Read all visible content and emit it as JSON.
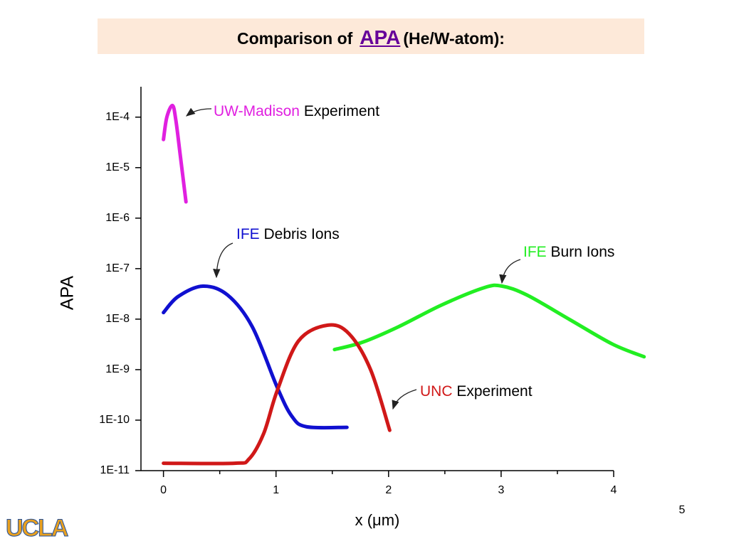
{
  "header": {
    "title_start": "Comparison  of",
    "title_link": "APA",
    "title_end": "(He/W-atom):"
  },
  "chart_data": {
    "type": "line",
    "xlabel": "x (μm)",
    "ylabel": "APA",
    "xlim": [
      -0.2,
      4
    ],
    "xticks": [
      0,
      1,
      2,
      3,
      4
    ],
    "xticks_minor": [
      0.5,
      1.5,
      2.5,
      3.5
    ],
    "ylim": [
      1e-11,
      0.0004
    ],
    "log_y": true,
    "yticks": [
      {
        "value": 1e-11,
        "label": "1E-11"
      },
      {
        "value": 1e-10,
        "label": "1E-10"
      },
      {
        "value": 1e-09,
        "label": "1E-9"
      },
      {
        "value": 1e-08,
        "label": "1E-8"
      },
      {
        "value": 1e-07,
        "label": "1E-7"
      },
      {
        "value": 1e-06,
        "label": "1E-6"
      },
      {
        "value": 1e-05,
        "label": "1E-5"
      },
      {
        "value": 0.0001,
        "label": "1E-4"
      }
    ],
    "series": [
      {
        "name": "UW-Madison",
        "label": "Experiment",
        "color": "#e020e0",
        "x": [
          0.0,
          0.03,
          0.08,
          0.11,
          0.15,
          0.2
        ],
        "values": [
          3.6e-05,
          0.0001,
          0.00017,
          8.7e-05,
          1.7e-05,
          2.1e-06
        ]
      },
      {
        "name": "IFE",
        "label": "Debris Ions",
        "color": "#1010d0",
        "x": [
          0,
          0.13,
          0.35,
          0.57,
          0.79,
          1.01,
          1.14,
          1.27,
          1.63
        ],
        "values": [
          1.35e-08,
          2.8e-08,
          4.5e-08,
          3e-08,
          7e-09,
          4.5e-10,
          1.2e-10,
          7.4e-11,
          7.2e-11
        ]
      },
      {
        "name": "IFE",
        "label": "Burn Ions",
        "color": "#22ee22",
        "x": [
          1.52,
          1.77,
          2.09,
          2.47,
          2.85,
          3.01,
          3.23,
          3.61,
          3.99,
          4.27
        ],
        "values": [
          2.5e-09,
          3.5e-09,
          7.1e-09,
          1.9e-08,
          4.2e-08,
          4.5e-08,
          3e-08,
          9.8e-09,
          3.2e-09,
          1.8e-09
        ]
      },
      {
        "name": "UNC",
        "label": "Experiment",
        "color": "#d01818",
        "x": [
          0,
          0.63,
          0.76,
          0.89,
          1.01,
          1.2,
          1.46,
          1.65,
          1.84,
          2.01
        ],
        "values": [
          1.4e-11,
          1.4e-11,
          1.7e-11,
          5.4e-11,
          3.8e-10,
          3.7e-09,
          7.6e-09,
          5.1e-09,
          1e-09,
          6.3e-11
        ]
      }
    ]
  },
  "footer": {
    "page": "5",
    "logo": "UCLA"
  }
}
